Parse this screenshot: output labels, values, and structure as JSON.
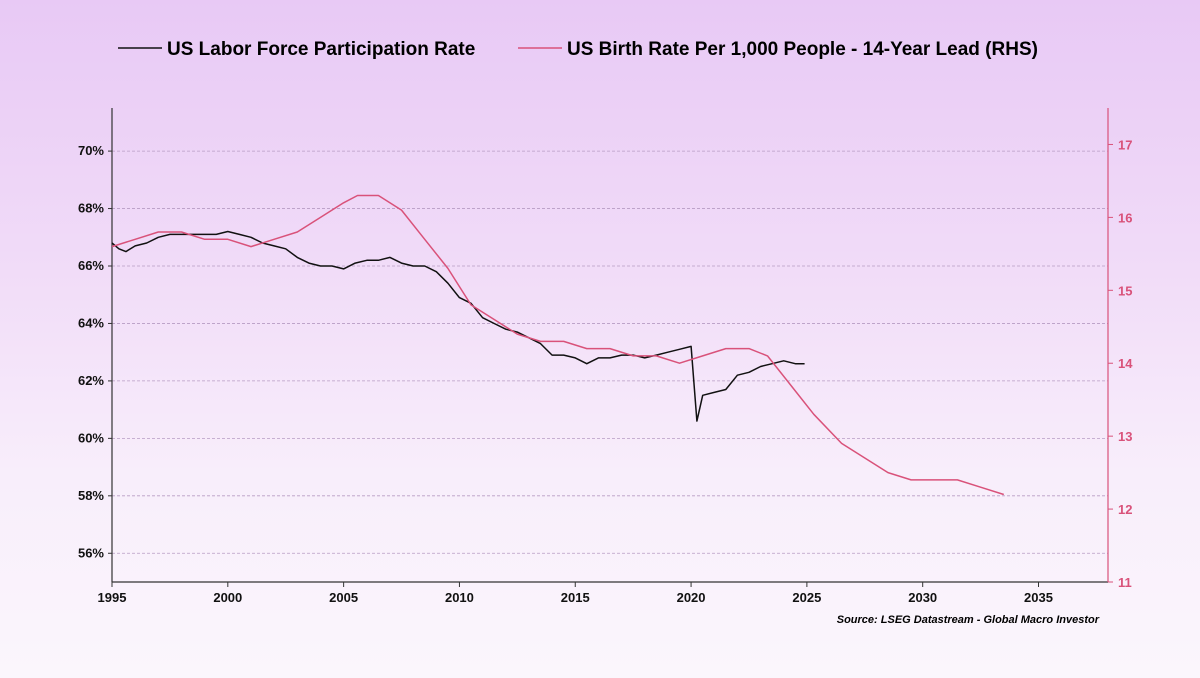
{
  "chart_data": {
    "type": "line",
    "title": "",
    "legend": {
      "position": "top",
      "entries": [
        {
          "name": "US Labor Force Participation Rate",
          "color": "#111111"
        },
        {
          "name": "US Birth Rate Per 1,000 People - 14-Year Lead (RHS)",
          "color": "#d9527a"
        }
      ]
    },
    "source": "Source: LSEG Datastream - Global Macro Investor",
    "x_axis": {
      "range": [
        1995,
        2038
      ],
      "ticks": [
        1995,
        2000,
        2005,
        2010,
        2015,
        2020,
        2025,
        2030,
        2035
      ],
      "tick_labels": [
        "1995",
        "2000",
        "2005",
        "2010",
        "2015",
        "2020",
        "2025",
        "2030",
        "2035"
      ]
    },
    "y_left": {
      "range": [
        55,
        71.5
      ],
      "ticks": [
        56,
        58,
        60,
        62,
        64,
        66,
        68,
        70
      ],
      "tick_labels": [
        "56%",
        "58%",
        "60%",
        "62%",
        "64%",
        "66%",
        "68%",
        "70%"
      ],
      "grid": true
    },
    "y_right": {
      "range": [
        11,
        17.5
      ],
      "ticks": [
        11,
        12,
        13,
        14,
        15,
        16,
        17
      ],
      "tick_labels": [
        "11",
        "12",
        "13",
        "14",
        "15",
        "16",
        "17"
      ],
      "color": "#d9527a"
    },
    "series": [
      {
        "name": "US Labor Force Participation Rate",
        "axis": "left",
        "color": "#111111",
        "points": [
          [
            1995.0,
            66.8
          ],
          [
            1995.3,
            66.6
          ],
          [
            1995.6,
            66.5
          ],
          [
            1996.0,
            66.7
          ],
          [
            1996.5,
            66.8
          ],
          [
            1997.0,
            67.0
          ],
          [
            1997.5,
            67.1
          ],
          [
            1998.0,
            67.1
          ],
          [
            1998.5,
            67.1
          ],
          [
            1999.0,
            67.1
          ],
          [
            1999.5,
            67.1
          ],
          [
            2000.0,
            67.2
          ],
          [
            2000.5,
            67.1
          ],
          [
            2001.0,
            67.0
          ],
          [
            2001.5,
            66.8
          ],
          [
            2002.0,
            66.7
          ],
          [
            2002.5,
            66.6
          ],
          [
            2003.0,
            66.3
          ],
          [
            2003.5,
            66.1
          ],
          [
            2004.0,
            66.0
          ],
          [
            2004.5,
            66.0
          ],
          [
            2005.0,
            65.9
          ],
          [
            2005.5,
            66.1
          ],
          [
            2006.0,
            66.2
          ],
          [
            2006.5,
            66.2
          ],
          [
            2007.0,
            66.3
          ],
          [
            2007.5,
            66.1
          ],
          [
            2008.0,
            66.0
          ],
          [
            2008.5,
            66.0
          ],
          [
            2009.0,
            65.8
          ],
          [
            2009.5,
            65.4
          ],
          [
            2010.0,
            64.9
          ],
          [
            2010.5,
            64.7
          ],
          [
            2011.0,
            64.2
          ],
          [
            2011.5,
            64.0
          ],
          [
            2012.0,
            63.8
          ],
          [
            2012.5,
            63.7
          ],
          [
            2013.0,
            63.5
          ],
          [
            2013.5,
            63.3
          ],
          [
            2014.0,
            62.9
          ],
          [
            2014.5,
            62.9
          ],
          [
            2015.0,
            62.8
          ],
          [
            2015.5,
            62.6
          ],
          [
            2016.0,
            62.8
          ],
          [
            2016.5,
            62.8
          ],
          [
            2017.0,
            62.9
          ],
          [
            2017.5,
            62.9
          ],
          [
            2018.0,
            62.8
          ],
          [
            2018.5,
            62.9
          ],
          [
            2019.0,
            63.0
          ],
          [
            2019.5,
            63.1
          ],
          [
            2020.0,
            63.2
          ],
          [
            2020.25,
            60.6
          ],
          [
            2020.5,
            61.5
          ],
          [
            2021.0,
            61.6
          ],
          [
            2021.5,
            61.7
          ],
          [
            2022.0,
            62.2
          ],
          [
            2022.5,
            62.3
          ],
          [
            2023.0,
            62.5
          ],
          [
            2023.5,
            62.6
          ],
          [
            2024.0,
            62.7
          ],
          [
            2024.5,
            62.6
          ],
          [
            2024.9,
            62.6
          ]
        ]
      },
      {
        "name": "US Birth Rate Per 1,000 People - 14-Year Lead (RHS)",
        "axis": "right",
        "color": "#d9527a",
        "points": [
          [
            1995.0,
            15.6
          ],
          [
            1996.0,
            15.7
          ],
          [
            1997.0,
            15.8
          ],
          [
            1998.0,
            15.8
          ],
          [
            1999.0,
            15.7
          ],
          [
            2000.0,
            15.7
          ],
          [
            2001.0,
            15.6
          ],
          [
            2002.0,
            15.7
          ],
          [
            2003.0,
            15.8
          ],
          [
            2004.0,
            16.0
          ],
          [
            2005.0,
            16.2
          ],
          [
            2005.6,
            16.3
          ],
          [
            2006.5,
            16.3
          ],
          [
            2007.5,
            16.1
          ],
          [
            2008.5,
            15.7
          ],
          [
            2009.5,
            15.3
          ],
          [
            2010.5,
            14.8
          ],
          [
            2011.5,
            14.6
          ],
          [
            2012.5,
            14.4
          ],
          [
            2013.5,
            14.3
          ],
          [
            2014.5,
            14.3
          ],
          [
            2015.5,
            14.2
          ],
          [
            2016.5,
            14.2
          ],
          [
            2017.5,
            14.1
          ],
          [
            2018.5,
            14.1
          ],
          [
            2019.5,
            14.0
          ],
          [
            2020.5,
            14.1
          ],
          [
            2021.5,
            14.2
          ],
          [
            2022.5,
            14.2
          ],
          [
            2023.3,
            14.1
          ],
          [
            2024.3,
            13.7
          ],
          [
            2025.3,
            13.3
          ],
          [
            2026.5,
            12.9
          ],
          [
            2027.5,
            12.7
          ],
          [
            2028.5,
            12.5
          ],
          [
            2029.5,
            12.4
          ],
          [
            2030.5,
            12.4
          ],
          [
            2031.5,
            12.4
          ],
          [
            2032.5,
            12.3
          ],
          [
            2033.5,
            12.2
          ]
        ]
      }
    ]
  }
}
